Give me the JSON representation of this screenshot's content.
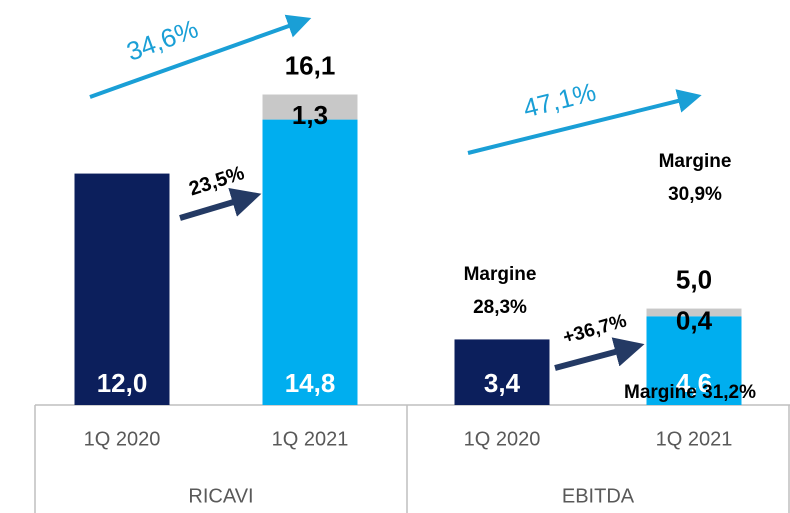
{
  "chart_data": {
    "type": "bar",
    "stacked": true,
    "groups": [
      "RICAVI",
      "EBITDA"
    ],
    "categories": [
      "1Q 2020",
      "1Q 2021",
      "1Q 2020",
      "1Q 2021"
    ],
    "series": [
      {
        "colors": [
          "#0c1f5c",
          "#00aeef",
          "#0c1f5c",
          "#00aeef"
        ],
        "values": [
          12.0,
          14.8,
          3.4,
          4.6
        ],
        "value_labels": [
          "12,0",
          "14,8",
          "3,4",
          "4,6"
        ]
      },
      {
        "color": "#c8c8c8",
        "values": [
          null,
          1.3,
          null,
          0.4
        ],
        "value_labels": [
          null,
          "1,3",
          null,
          "0,4"
        ]
      }
    ],
    "totals": [
      null,
      16.1,
      null,
      5.0
    ],
    "total_labels": [
      null,
      "16,1",
      null,
      "5,0"
    ],
    "ylim": [
      0,
      21
    ],
    "annotations": [
      {
        "lines": [
          "34,6%"
        ]
      },
      {
        "lines": [
          "23,5%"
        ]
      },
      {
        "lines": [
          "47,1%"
        ]
      },
      {
        "lines": [
          "+36,7%"
        ]
      },
      {
        "lines": [
          "Margine",
          "28,3%"
        ]
      },
      {
        "lines": [
          "Margine",
          "30,9%"
        ]
      },
      {
        "lines": [
          "Margine 31,2%"
        ]
      }
    ]
  }
}
